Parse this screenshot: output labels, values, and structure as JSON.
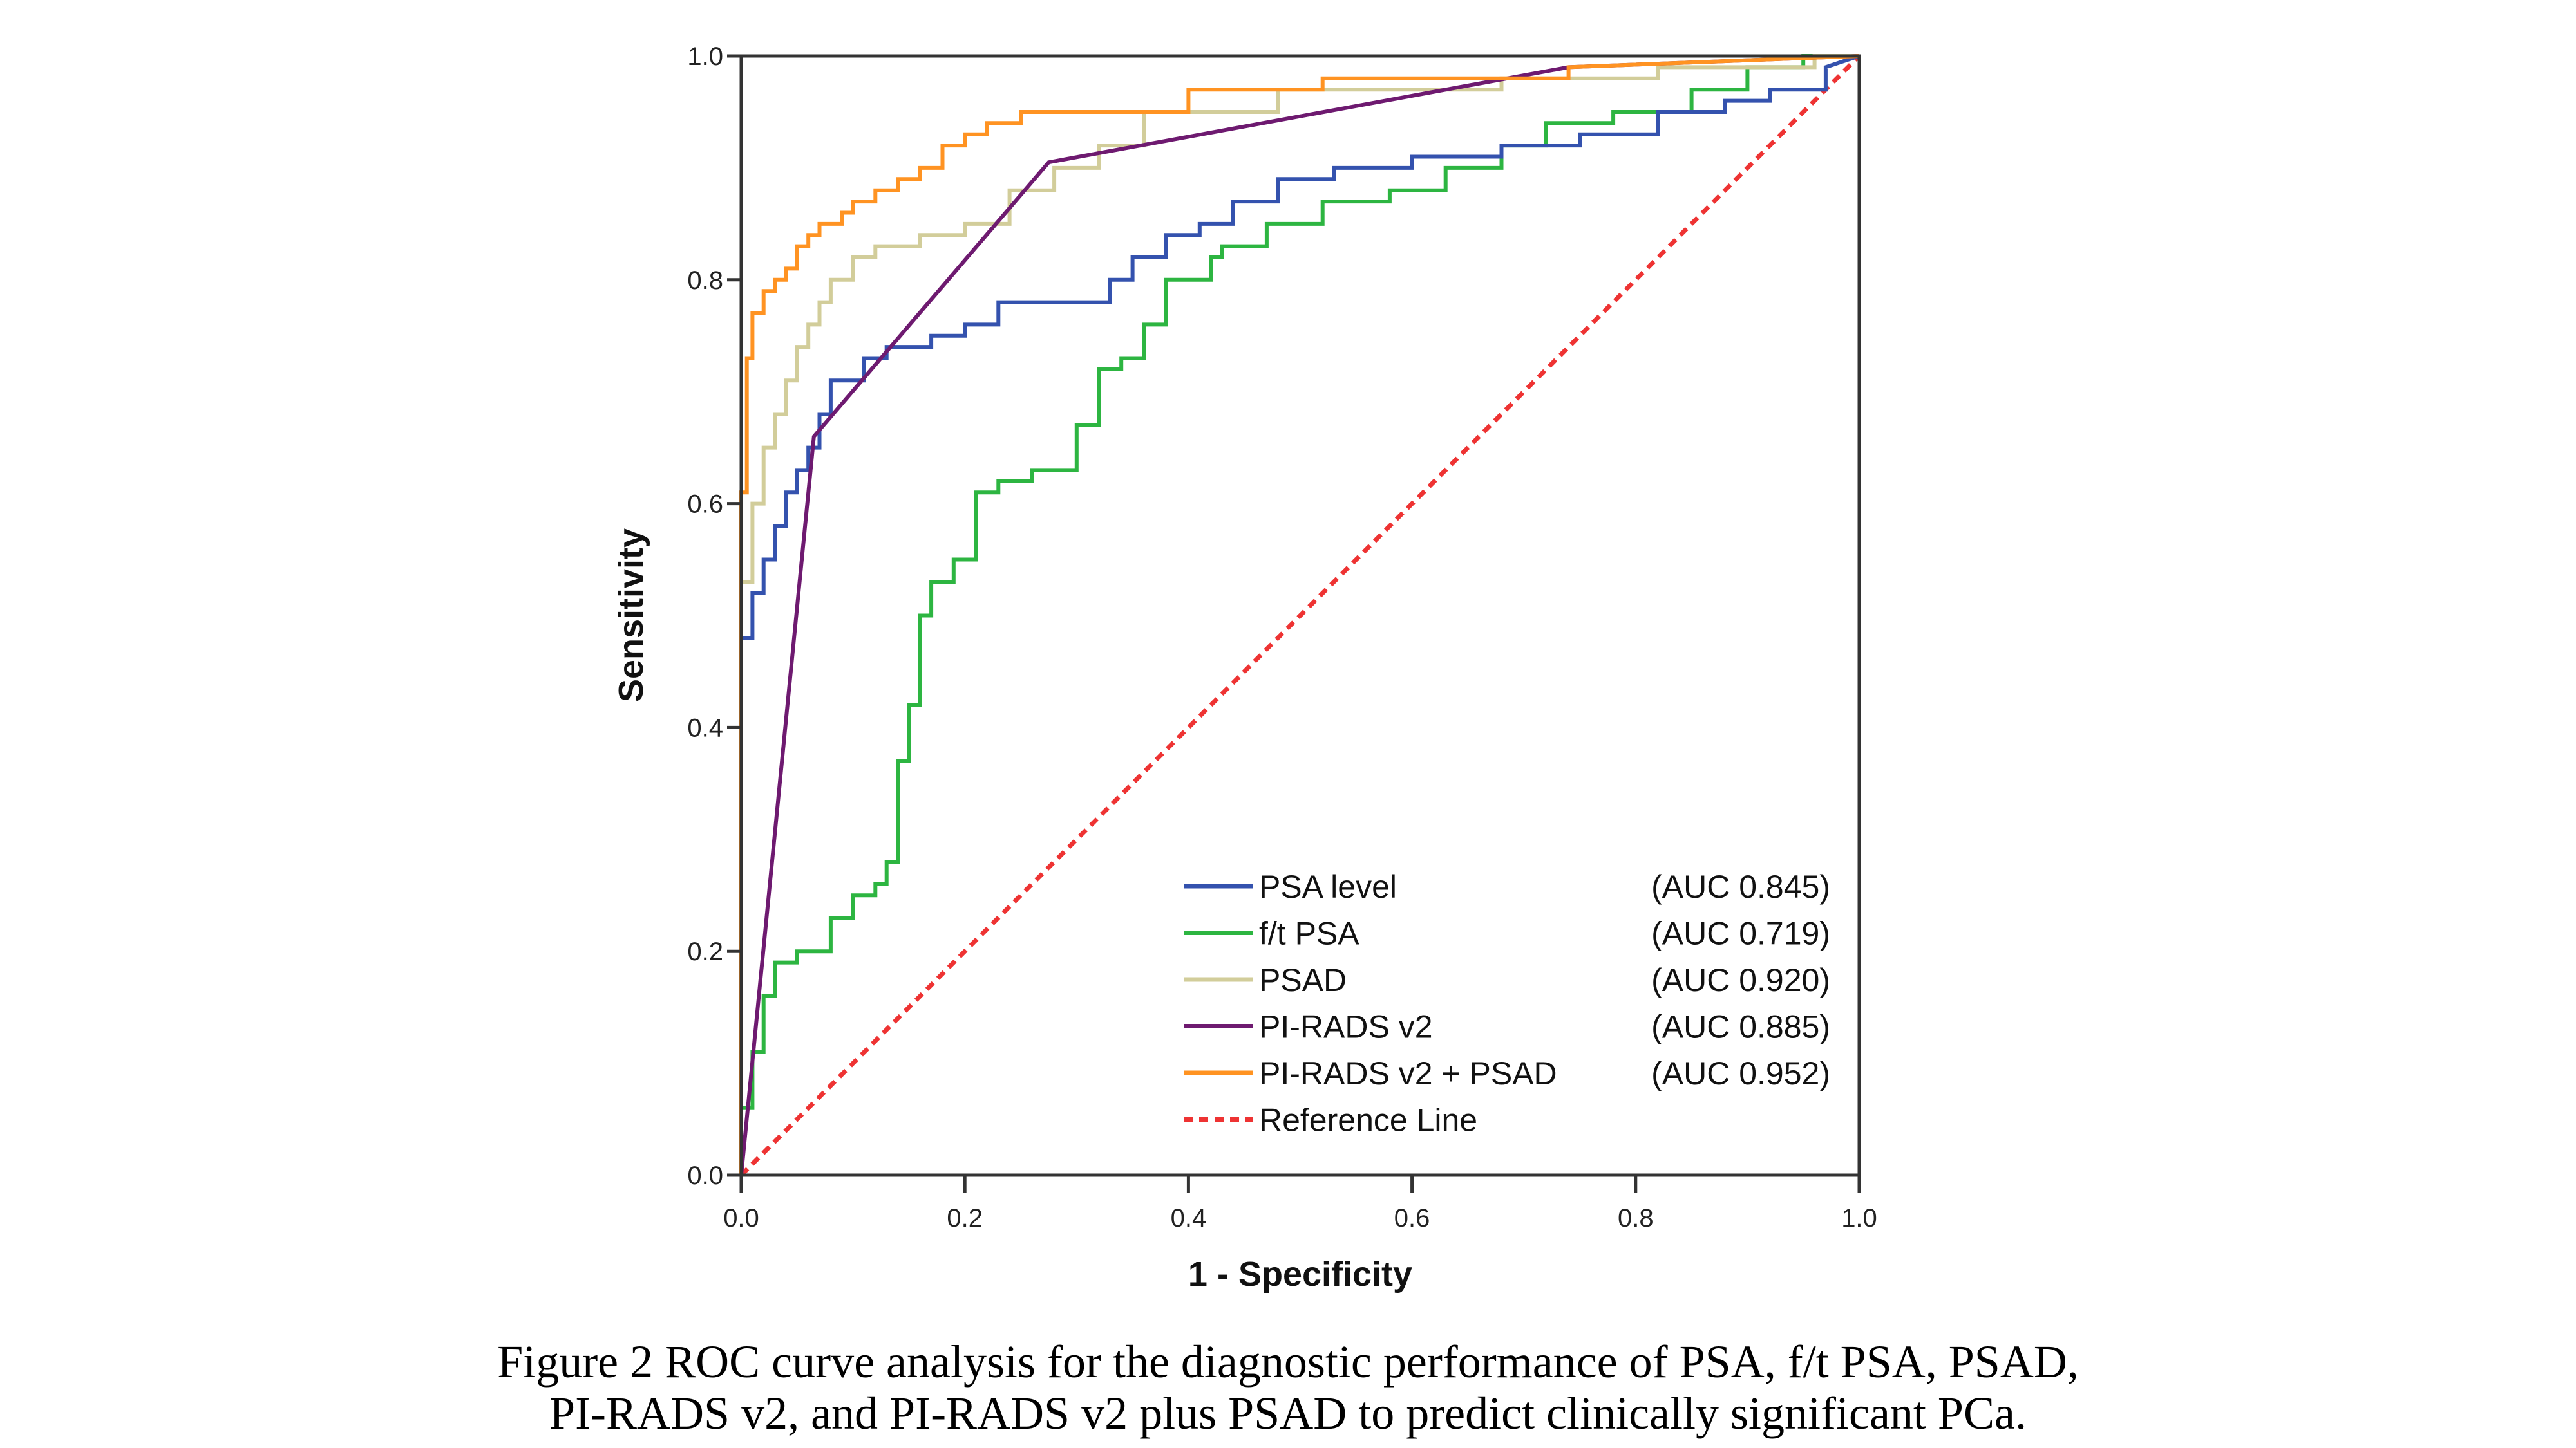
{
  "chart_data": {
    "type": "line",
    "title": "",
    "xlabel": "1 - Specificity",
    "ylabel": "Sensitivity",
    "xlim": [
      0,
      1
    ],
    "ylim": [
      0,
      1
    ],
    "xticks": [
      "0.0",
      "0.2",
      "0.4",
      "0.6",
      "0.8",
      "1.0"
    ],
    "yticks": [
      "0.0",
      "0.2",
      "0.4",
      "0.6",
      "0.8",
      "1.0"
    ],
    "grid": false,
    "legend_position": "bottom-right",
    "series": [
      {
        "name": "PSA level",
        "auc_label": "(AUC 0.845)",
        "color": "#3452AE",
        "style": "solid",
        "x": [
          0,
          0,
          0.01,
          0.01,
          0.02,
          0.02,
          0.03,
          0.03,
          0.04,
          0.04,
          0.05,
          0.05,
          0.06,
          0.06,
          0.07,
          0.07,
          0.08,
          0.08,
          0.11,
          0.11,
          0.13,
          0.13,
          0.17,
          0.17,
          0.2,
          0.2,
          0.23,
          0.23,
          0.33,
          0.33,
          0.35,
          0.35,
          0.38,
          0.38,
          0.41,
          0.41,
          0.44,
          0.44,
          0.48,
          0.48,
          0.53,
          0.53,
          0.6,
          0.6,
          0.68,
          0.68,
          0.75,
          0.75,
          0.82,
          0.82,
          0.88,
          0.88,
          0.92,
          0.92,
          0.97,
          0.97,
          1.0
        ],
        "y": [
          0,
          0.48,
          0.48,
          0.52,
          0.52,
          0.55,
          0.55,
          0.58,
          0.58,
          0.61,
          0.61,
          0.63,
          0.63,
          0.65,
          0.65,
          0.68,
          0.68,
          0.71,
          0.71,
          0.73,
          0.73,
          0.74,
          0.74,
          0.75,
          0.75,
          0.76,
          0.76,
          0.78,
          0.78,
          0.8,
          0.8,
          0.82,
          0.82,
          0.84,
          0.84,
          0.85,
          0.85,
          0.87,
          0.87,
          0.89,
          0.89,
          0.9,
          0.9,
          0.91,
          0.91,
          0.92,
          0.92,
          0.93,
          0.93,
          0.95,
          0.95,
          0.96,
          0.96,
          0.97,
          0.97,
          0.99,
          1.0
        ]
      },
      {
        "name": "f/t PSA",
        "auc_label": "(AUC 0.719)",
        "color": "#2DB541",
        "style": "solid",
        "x": [
          0,
          0,
          0.01,
          0.01,
          0.02,
          0.02,
          0.03,
          0.03,
          0.05,
          0.05,
          0.08,
          0.08,
          0.1,
          0.1,
          0.12,
          0.12,
          0.13,
          0.13,
          0.14,
          0.14,
          0.15,
          0.15,
          0.16,
          0.16,
          0.17,
          0.17,
          0.19,
          0.19,
          0.21,
          0.21,
          0.23,
          0.23,
          0.26,
          0.26,
          0.3,
          0.3,
          0.32,
          0.32,
          0.34,
          0.34,
          0.36,
          0.36,
          0.38,
          0.38,
          0.42,
          0.42,
          0.43,
          0.43,
          0.47,
          0.47,
          0.52,
          0.52,
          0.58,
          0.58,
          0.63,
          0.63,
          0.68,
          0.68,
          0.72,
          0.72,
          0.78,
          0.78,
          0.85,
          0.85,
          0.9,
          0.9,
          0.95,
          0.95,
          1.0
        ],
        "y": [
          0,
          0.06,
          0.06,
          0.11,
          0.11,
          0.16,
          0.16,
          0.19,
          0.19,
          0.2,
          0.2,
          0.23,
          0.23,
          0.25,
          0.25,
          0.26,
          0.26,
          0.28,
          0.28,
          0.37,
          0.37,
          0.42,
          0.42,
          0.5,
          0.5,
          0.53,
          0.53,
          0.55,
          0.55,
          0.61,
          0.61,
          0.62,
          0.62,
          0.63,
          0.63,
          0.67,
          0.67,
          0.72,
          0.72,
          0.73,
          0.73,
          0.76,
          0.76,
          0.8,
          0.8,
          0.82,
          0.82,
          0.83,
          0.83,
          0.85,
          0.85,
          0.87,
          0.87,
          0.88,
          0.88,
          0.9,
          0.9,
          0.92,
          0.92,
          0.94,
          0.94,
          0.95,
          0.95,
          0.97,
          0.97,
          0.99,
          0.99,
          1.0,
          1.0
        ]
      },
      {
        "name": "PSAD",
        "auc_label": "(AUC 0.920)",
        "color": "#D2CD9A",
        "style": "solid",
        "x": [
          0,
          0,
          0.01,
          0.01,
          0.02,
          0.02,
          0.03,
          0.03,
          0.04,
          0.04,
          0.05,
          0.05,
          0.06,
          0.06,
          0.07,
          0.07,
          0.08,
          0.08,
          0.1,
          0.1,
          0.12,
          0.12,
          0.16,
          0.16,
          0.2,
          0.2,
          0.24,
          0.24,
          0.28,
          0.28,
          0.32,
          0.32,
          0.36,
          0.36,
          0.48,
          0.48,
          0.68,
          0.68,
          0.82,
          0.82,
          0.96,
          0.96,
          1.0
        ],
        "y": [
          0,
          0.53,
          0.53,
          0.6,
          0.6,
          0.65,
          0.65,
          0.68,
          0.68,
          0.71,
          0.71,
          0.74,
          0.74,
          0.76,
          0.76,
          0.78,
          0.78,
          0.8,
          0.8,
          0.82,
          0.82,
          0.83,
          0.83,
          0.84,
          0.84,
          0.85,
          0.85,
          0.88,
          0.88,
          0.9,
          0.9,
          0.92,
          0.92,
          0.95,
          0.95,
          0.97,
          0.97,
          0.98,
          0.98,
          0.99,
          0.99,
          1.0,
          1.0
        ]
      },
      {
        "name": "PI-RADS v2",
        "auc_label": "(AUC 0.885)",
        "color": "#6E1A70",
        "style": "solid",
        "x": [
          0,
          0.065,
          0.275,
          0.74,
          1.0
        ],
        "y": [
          0,
          0.66,
          0.905,
          0.99,
          1.0
        ]
      },
      {
        "name": "PI-RADS v2 + PSAD",
        "auc_label": "(AUC 0.952)",
        "color": "#FF9322",
        "style": "solid",
        "x": [
          0,
          0,
          0.005,
          0.005,
          0.01,
          0.01,
          0.02,
          0.02,
          0.03,
          0.03,
          0.04,
          0.04,
          0.05,
          0.05,
          0.06,
          0.06,
          0.07,
          0.07,
          0.09,
          0.09,
          0.1,
          0.1,
          0.12,
          0.12,
          0.14,
          0.14,
          0.16,
          0.16,
          0.18,
          0.18,
          0.2,
          0.2,
          0.22,
          0.22,
          0.25,
          0.25,
          0.4,
          0.4,
          0.52,
          0.52,
          0.74,
          0.74,
          1.0
        ],
        "y": [
          0,
          0.61,
          0.61,
          0.73,
          0.73,
          0.77,
          0.77,
          0.79,
          0.79,
          0.8,
          0.8,
          0.81,
          0.81,
          0.83,
          0.83,
          0.84,
          0.84,
          0.85,
          0.85,
          0.86,
          0.86,
          0.87,
          0.87,
          0.88,
          0.88,
          0.89,
          0.89,
          0.9,
          0.9,
          0.92,
          0.92,
          0.93,
          0.93,
          0.94,
          0.94,
          0.95,
          0.95,
          0.97,
          0.97,
          0.98,
          0.98,
          0.99,
          1.0
        ]
      },
      {
        "name": "Reference Line",
        "auc_label": "",
        "color": "#EE3333",
        "style": "dotted",
        "x": [
          0,
          1
        ],
        "y": [
          0,
          1
        ]
      }
    ]
  },
  "caption": {
    "line1": "Figure 2 ROC curve analysis for the diagnostic performance of PSA, f/t PSA, PSAD,",
    "line2": "PI-RADS v2, and PI-RADS v2 plus PSAD to predict clinically significant PCa."
  }
}
